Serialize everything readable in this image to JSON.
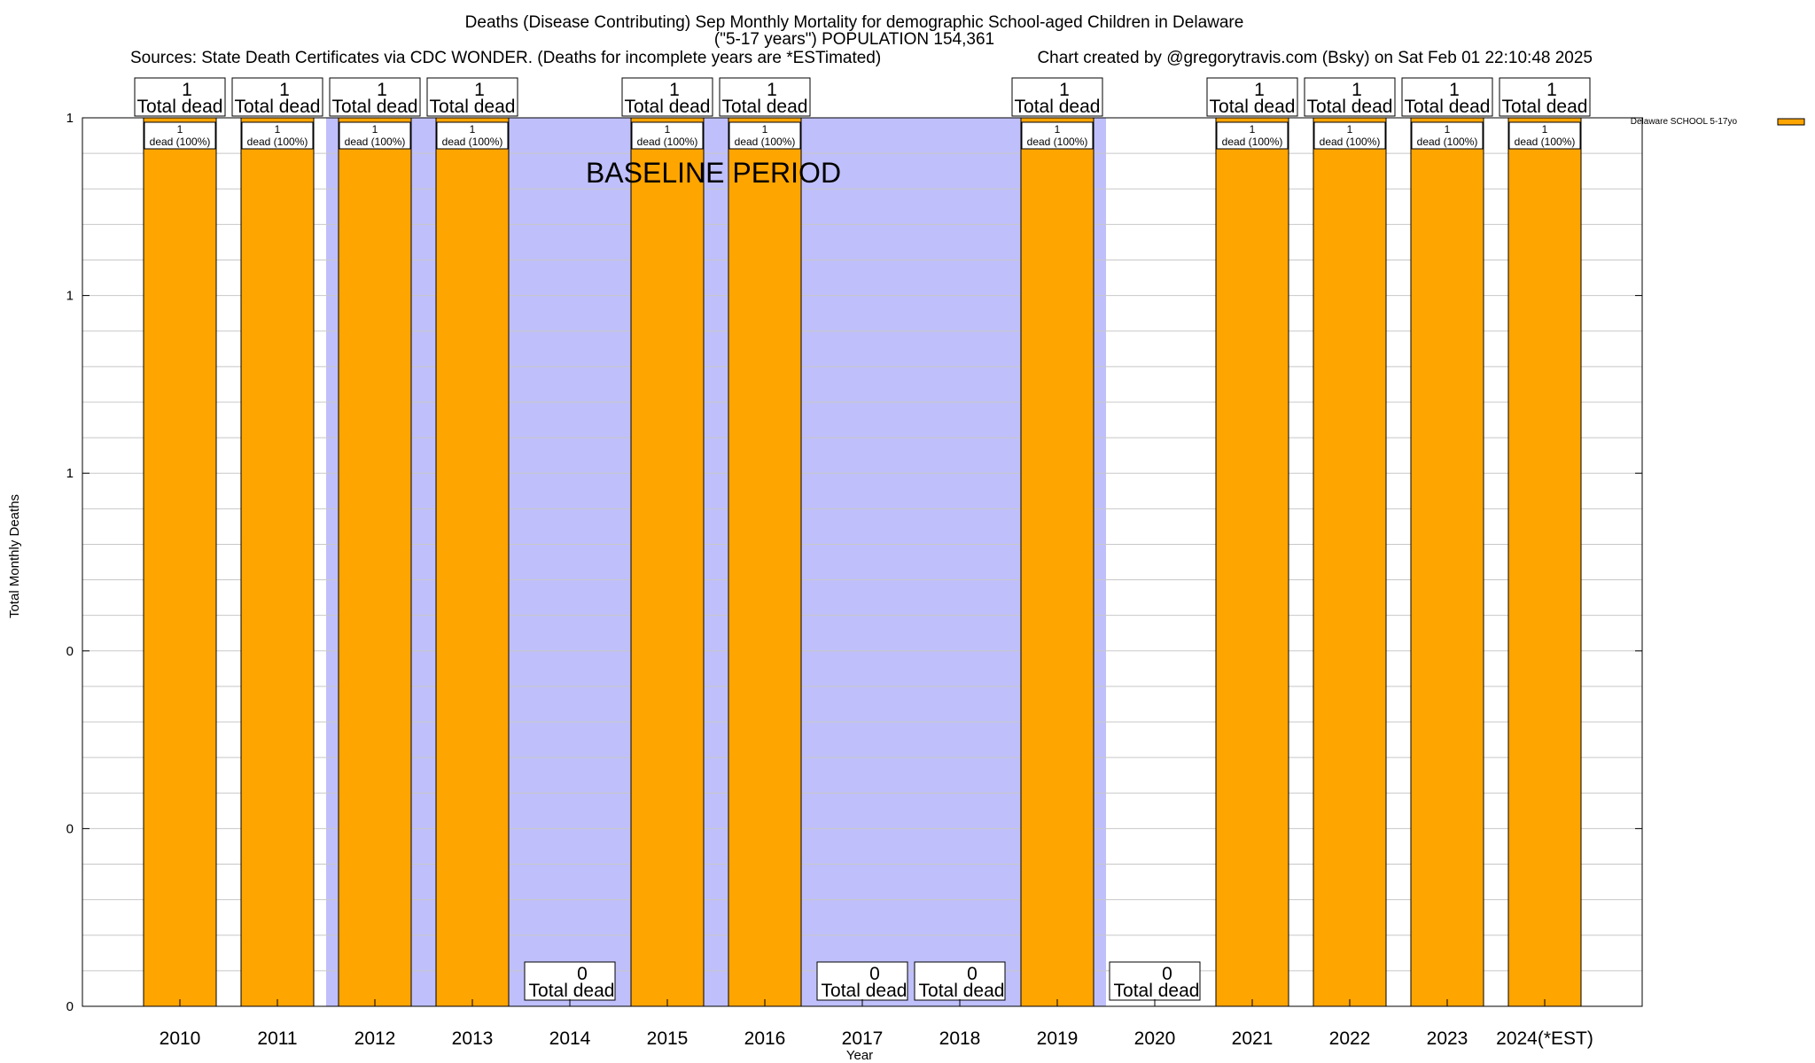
{
  "chart_data": {
    "type": "bar",
    "title_lines": [
      "Deaths (Disease Contributing) Sep Monthly Mortality for demographic School-aged Children in Delaware",
      "(\"5-17 years\") POPULATION 154,361"
    ],
    "source_note": "Sources: State Death Certificates via CDC WONDER. (Deaths for incomplete years are *ESTimated)",
    "credit_note": "Chart created by @gregorytravis.com (Bsky) on Sat Feb 01 22:10:48 2025",
    "xlabel": "Year",
    "ylabel": "Total Monthly Deaths",
    "categories": [
      "2010",
      "2011",
      "2012",
      "2013",
      "2014",
      "2015",
      "2016",
      "2017",
      "2018",
      "2019",
      "2020",
      "2021",
      "2022",
      "2023",
      "2024(*EST)"
    ],
    "series": [
      {
        "name": "Delaware SCHOOL 5-17yo",
        "color": "#ffa500",
        "values": [
          1,
          1,
          1,
          1,
          0,
          1,
          1,
          0,
          0,
          1,
          0,
          1,
          1,
          1,
          1
        ]
      }
    ],
    "total_label_suffix": "Total dead",
    "segment_label_text": "dead (100%)",
    "ylim": [
      0,
      1
    ],
    "ytick_labels": [
      "0",
      "0",
      "0",
      "1",
      "1",
      "1"
    ],
    "baseline_period": {
      "label": "BASELINE PERIOD",
      "start_category": "2012",
      "end_category": "2019",
      "color": "#bfbffb"
    },
    "legend_position": "top-right",
    "grid": true
  }
}
